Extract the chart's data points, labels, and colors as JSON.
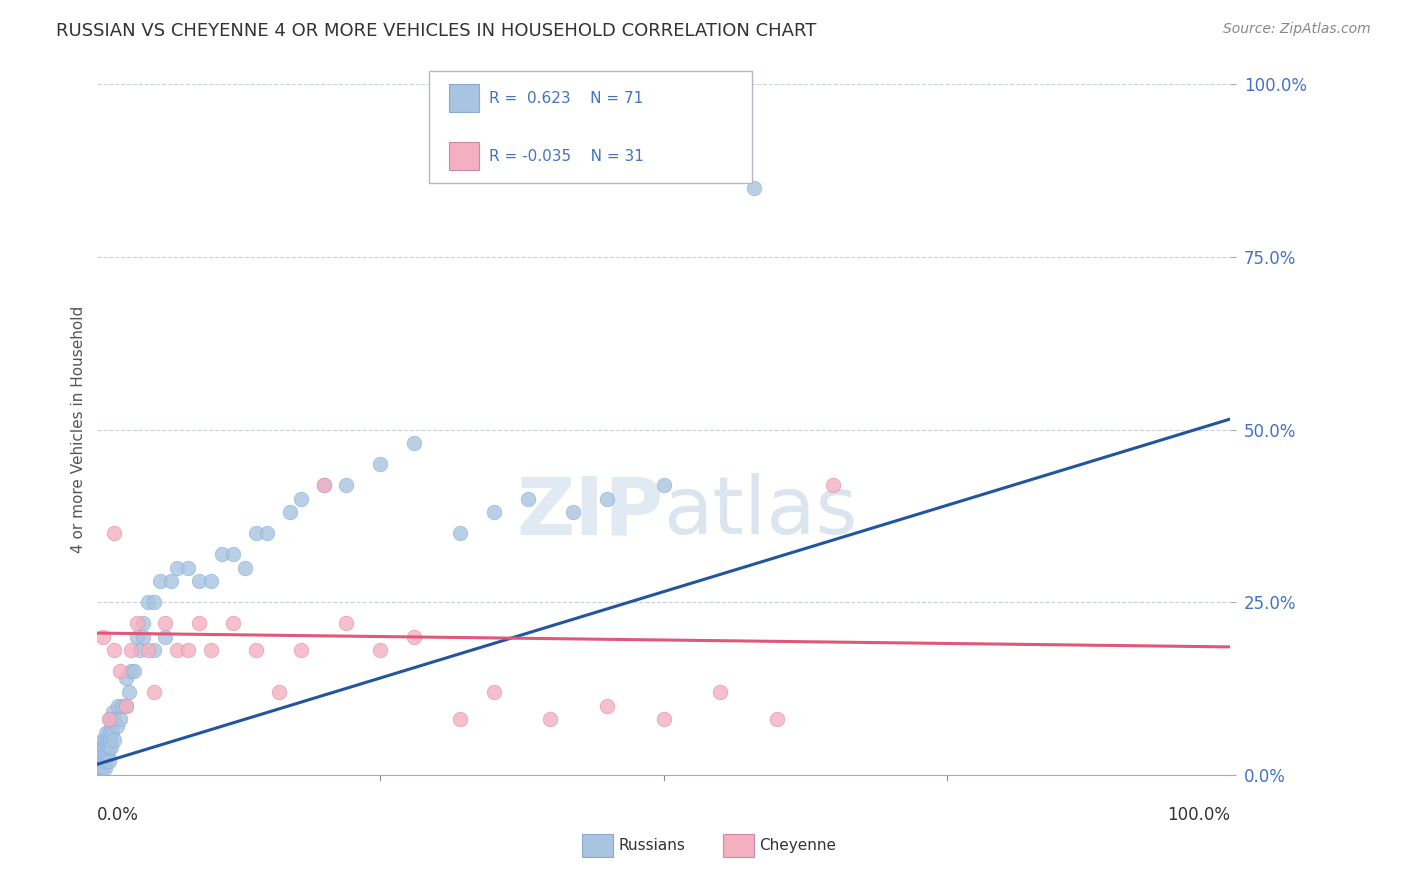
{
  "title": "RUSSIAN VS CHEYENNE 4 OR MORE VEHICLES IN HOUSEHOLD CORRELATION CHART",
  "source": "Source: ZipAtlas.com",
  "ylabel": "4 or more Vehicles in Household",
  "xlim": [
    0,
    100
  ],
  "ylim": [
    0,
    100
  ],
  "ytick_values": [
    0,
    25,
    50,
    75,
    100
  ],
  "russian_color": "#a8c4e0",
  "cheyenne_color": "#f4afc0",
  "russian_line_color": "#2255a0",
  "cheyenne_line_color": "#e05878",
  "legend_text_color": "#4472c4",
  "watermark_zip": "ZIP",
  "watermark_atlas": "atlas",
  "background_color": "#ffffff",
  "grid_color": "#c8d0dc",
  "legend_r_russian": "R =  0.623",
  "legend_n_russian": "N = 71",
  "legend_r_cheyenne": "R = -0.035",
  "legend_n_cheyenne": "N = 31",
  "russian_line_x0": 0,
  "russian_line_y0": 1.5,
  "russian_line_x1": 100,
  "russian_line_y1": 51.5,
  "cheyenne_line_x0": 0,
  "cheyenne_line_y0": 20.5,
  "cheyenne_line_x1": 100,
  "cheyenne_line_y1": 18.5,
  "russians_x": [
    0.1,
    0.2,
    0.3,
    0.3,
    0.4,
    0.4,
    0.5,
    0.5,
    0.5,
    0.6,
    0.6,
    0.7,
    0.7,
    0.7,
    0.8,
    0.8,
    0.8,
    0.9,
    0.9,
    1.0,
    1.0,
    1.0,
    1.1,
    1.1,
    1.2,
    1.2,
    1.3,
    1.4,
    1.5,
    1.5,
    1.7,
    1.8,
    2.0,
    2.2,
    2.5,
    2.5,
    2.8,
    3.0,
    3.2,
    3.5,
    3.8,
    4.0,
    4.0,
    4.5,
    5.0,
    5.0,
    5.5,
    6.0,
    6.5,
    7.0,
    8.0,
    9.0,
    10.0,
    11.0,
    12.0,
    13.0,
    14.0,
    15.0,
    17.0,
    18.0,
    20.0,
    22.0,
    25.0,
    28.0,
    32.0,
    35.0,
    38.0,
    42.0,
    45.0,
    50.0,
    58.0
  ],
  "russians_y": [
    1,
    2,
    1,
    3,
    2,
    4,
    1,
    3,
    5,
    2,
    4,
    1,
    3,
    5,
    2,
    4,
    6,
    3,
    5,
    2,
    4,
    6,
    5,
    8,
    4,
    7,
    6,
    9,
    5,
    8,
    7,
    10,
    8,
    10,
    10,
    14,
    12,
    15,
    15,
    20,
    18,
    20,
    22,
    25,
    18,
    25,
    28,
    20,
    28,
    30,
    30,
    28,
    28,
    32,
    32,
    30,
    35,
    35,
    38,
    40,
    42,
    42,
    45,
    48,
    35,
    38,
    40,
    38,
    40,
    42,
    85
  ],
  "cheyenne_x": [
    0.5,
    1.0,
    1.5,
    1.5,
    2.0,
    2.5,
    3.0,
    3.5,
    4.5,
    5.0,
    6.0,
    7.0,
    8.0,
    9.0,
    10.0,
    12.0,
    14.0,
    16.0,
    18.0,
    20.0,
    22.0,
    25.0,
    28.0,
    32.0,
    35.0,
    40.0,
    45.0,
    50.0,
    55.0,
    60.0,
    65.0
  ],
  "cheyenne_y": [
    20,
    8,
    35,
    18,
    15,
    10,
    18,
    22,
    18,
    12,
    22,
    18,
    18,
    22,
    18,
    22,
    18,
    12,
    18,
    42,
    22,
    18,
    20,
    8,
    12,
    8,
    10,
    8,
    12,
    8,
    42
  ]
}
